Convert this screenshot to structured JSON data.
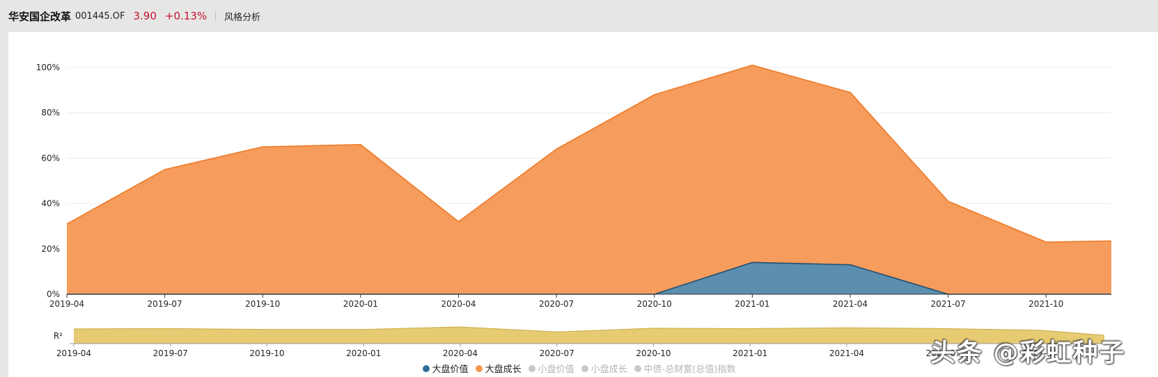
{
  "header": {
    "fund_name": "华安国企改革",
    "fund_code": "001445.OF",
    "price": "3.90",
    "change": "+0.13%",
    "tab_label": "风格分析"
  },
  "watermark": "头条 @彩虹种子",
  "colors": {
    "large_value": "#2e6e99",
    "large_growth": "#f5944e",
    "r2": "#e6c86a",
    "inactive": "#c8c8c8"
  },
  "chart_data": [
    {
      "type": "area",
      "stacked": true,
      "x": [
        "2019-04",
        "2019-07",
        "2019-10",
        "2020-01",
        "2020-04",
        "2020-07",
        "2020-10",
        "2021-01",
        "2021-04",
        "2021-07",
        "2021-10",
        "2021-12"
      ],
      "x_tick_labels": [
        "2019-04",
        "2019-07",
        "2019-10",
        "2020-01",
        "2020-04",
        "2020-07",
        "2020-10",
        "2021-01",
        "2021-04",
        "2021-07",
        "2021-10"
      ],
      "y_tick_labels": [
        "0%",
        "20%",
        "40%",
        "60%",
        "80%",
        "100%"
      ],
      "ylim": [
        0,
        100
      ],
      "grid": true,
      "series": [
        {
          "name": "大盘价值",
          "values": [
            0,
            0,
            0,
            0,
            0,
            0,
            0,
            14,
            13,
            0,
            0,
            0
          ]
        },
        {
          "name": "大盘成长",
          "values": [
            31,
            55,
            65,
            66,
            32,
            64,
            88,
            87,
            76,
            41,
            23,
            23.5
          ]
        }
      ]
    },
    {
      "type": "area",
      "ylabel": "R²",
      "x": [
        "2019-04",
        "2019-07",
        "2019-10",
        "2020-01",
        "2020-04",
        "2020-07",
        "2020-10",
        "2021-01",
        "2021-04",
        "2021-07",
        "2021-10",
        "2021-12"
      ],
      "x_tick_labels": [
        "2019-04",
        "2019-07",
        "2019-10",
        "2020-01",
        "2020-04",
        "2020-07",
        "2020-10",
        "2021-01",
        "2021-04",
        "2021-07",
        "2021-10"
      ],
      "ylim": [
        0,
        1
      ],
      "series": [
        {
          "values": [
            0.88,
            0.9,
            0.85,
            0.85,
            1.0,
            0.7,
            0.92,
            0.9,
            0.95,
            0.9,
            0.8,
            0.5
          ]
        }
      ]
    }
  ],
  "legend": [
    {
      "label": "大盘价值",
      "color": "#2e6e99",
      "text_color": "#222222"
    },
    {
      "label": "大盘成长",
      "color": "#f5944e",
      "text_color": "#222222"
    },
    {
      "label": "小盘价值",
      "color": "#c8c8c8",
      "text_color": "#b4b4b4"
    },
    {
      "label": "小盘成长",
      "color": "#c8c8c8",
      "text_color": "#b4b4b4"
    },
    {
      "label": "中债-总财富(总值)指数",
      "color": "#c8c8c8",
      "text_color": "#b4b4b4"
    }
  ]
}
